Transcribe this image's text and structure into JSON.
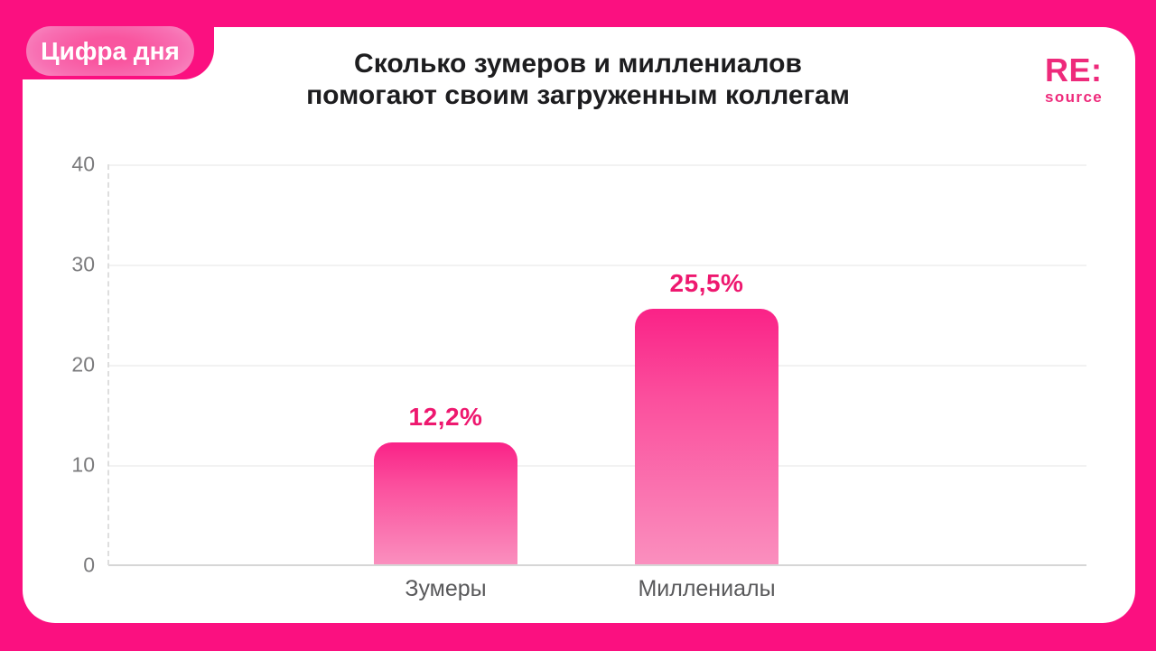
{
  "badge": {
    "label": "Цифра дня"
  },
  "header": {
    "title_line1": "Сколько зумеров и миллениалов",
    "title_line2": "помогают своим загруженным коллегам"
  },
  "logo": {
    "main": "RE:",
    "sub": "source"
  },
  "chart_data": {
    "type": "bar",
    "title": "Сколько зумеров и миллениалов помогают своим загруженным коллегам",
    "categories": [
      "Зумеры",
      "Миллениалы"
    ],
    "values": [
      12.2,
      25.5
    ],
    "value_labels": [
      "12,2%",
      "25,5%"
    ],
    "unit": "%",
    "xlabel": "",
    "ylabel": "",
    "ylim": [
      0,
      40
    ],
    "ytick_labels": [
      "40",
      "30",
      "20",
      "10",
      "0"
    ],
    "grid": true,
    "legend": "none",
    "bar_gradient_top": "#fa2287",
    "bar_gradient_bottom": "#fa8fbe"
  },
  "colors": {
    "background": "#fb1080",
    "card": "#ffffff",
    "title_text": "#1d1d1f",
    "value_label": "#ee186f",
    "logo_pink": "#ee2a7b",
    "axis_text": "#7b7b7d",
    "category_text": "#59595b",
    "badge_text": "#ffffff"
  }
}
